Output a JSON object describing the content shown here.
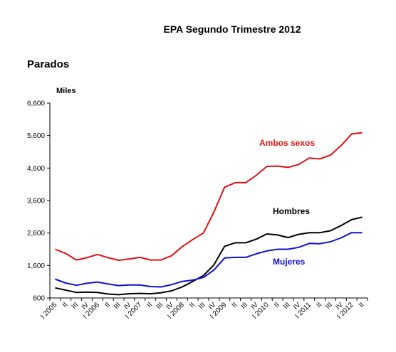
{
  "header": {
    "title": "EPA    Segundo Trimestre 2012",
    "subtitle": "Parados"
  },
  "chart_data": {
    "type": "line",
    "title": "EPA    Segundo Trimestre 2012",
    "subtitle": "Parados",
    "ylabel": "Miles",
    "xlabel": "",
    "ylim": [
      600,
      6600
    ],
    "yticks": [
      "6,600",
      "5,600",
      "4,600",
      "3,600",
      "2,600",
      "1,600",
      "600"
    ],
    "ytick_values": [
      6600,
      5600,
      4600,
      3600,
      2600,
      1600,
      600
    ],
    "x_tick_labels": [
      "I 2005",
      "II",
      "III",
      "IV",
      "I 2006",
      "II",
      "III",
      "IV",
      "I 2007",
      "II",
      "III",
      "IV",
      "I 2008",
      "II",
      "III",
      "IV",
      "I 2009",
      "II",
      "III",
      "IV",
      "I 2010",
      "II",
      "III",
      "IV",
      "I 2011",
      "II",
      "III",
      "IV",
      "I 2012",
      "II"
    ],
    "grid": false,
    "series": [
      {
        "name": "Ambos sexos",
        "color": "#e01010",
        "values": [
          2100,
          1970,
          1770,
          1840,
          1940,
          1840,
          1760,
          1800,
          1850,
          1770,
          1770,
          1900,
          2180,
          2400,
          2600,
          3250,
          4010,
          4150,
          4150,
          4380,
          4650,
          4660,
          4620,
          4710,
          4910,
          4880,
          5000,
          5290,
          5650,
          5690
        ]
      },
      {
        "name": "Hombres",
        "color": "#000000",
        "values": [
          910,
          840,
          770,
          780,
          770,
          720,
          700,
          730,
          740,
          730,
          760,
          820,
          940,
          1110,
          1290,
          1620,
          2190,
          2300,
          2300,
          2410,
          2570,
          2540,
          2460,
          2560,
          2610,
          2610,
          2670,
          2830,
          3010,
          3090
        ]
      },
      {
        "name": "Mujeres",
        "color": "#1010d0",
        "values": [
          1180,
          1060,
          990,
          1050,
          1090,
          1030,
          980,
          1000,
          1000,
          950,
          940,
          1010,
          1110,
          1150,
          1230,
          1460,
          1830,
          1850,
          1850,
          1960,
          2050,
          2100,
          2100,
          2160,
          2280,
          2270,
          2330,
          2450,
          2610,
          2610
        ]
      }
    ]
  }
}
